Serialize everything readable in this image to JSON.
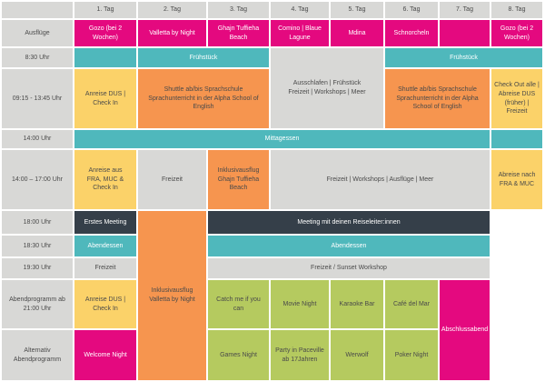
{
  "colors": {
    "pink": "#E4097F",
    "teal": "#4FB8BC",
    "orange": "#F6954F",
    "yellow": "#FBD269",
    "green": "#B5CA5F",
    "gray": "#D8D8D6",
    "dark": "#353F49",
    "text_dark": "#4A4A4A",
    "text_light": "#FFFFFF",
    "background": "#FFFFFF"
  },
  "grid": {
    "day_headers": [
      "1. Tag",
      "2. Tag",
      "3. Tag",
      "4. Tag",
      "5. Tag",
      "6. Tag",
      "7. Tag",
      "8. Tag"
    ],
    "row_labels": [
      "Ausflüge",
      "8:30 Uhr",
      "09:15 - 13:45 Uhr",
      "14:00 Uhr",
      "14:00 – 17:00 Uhr",
      "18:00 Uhr",
      "18:30 Uhr",
      "19:30 Uhr",
      "Abendprogramm ab 21:00 Uhr",
      "Alternativ Abendprogramm"
    ],
    "cells": [
      {
        "row": 1,
        "col": 1,
        "color": "pink",
        "text": "Gozo (bei 2 Wochen)"
      },
      {
        "row": 1,
        "col": 2,
        "color": "pink",
        "text": "Valletta by Night"
      },
      {
        "row": 1,
        "col": 3,
        "color": "pink",
        "text": "Ghajn Tuffieha Beach"
      },
      {
        "row": 1,
        "col": 4,
        "color": "pink",
        "text": "Comino | Blaue Lagune"
      },
      {
        "row": 1,
        "col": 5,
        "color": "pink",
        "text": "Mdina"
      },
      {
        "row": 1,
        "col": 6,
        "color": "pink",
        "text": "Schnorcheln"
      },
      {
        "row": 1,
        "col": 7,
        "color": "pink",
        "text": ""
      },
      {
        "row": 1,
        "col": 8,
        "color": "pink",
        "text": "Gozo (bei 2 Wochen)"
      },
      {
        "row": 2,
        "col": 1,
        "color": "teal",
        "text": ""
      },
      {
        "row": 2,
        "col": 2,
        "cs": 2,
        "color": "teal",
        "text": "Frühstück"
      },
      {
        "row": 2,
        "col": 4,
        "cs": 2,
        "rs": 2,
        "color": "gray",
        "text": "Ausschlafen | Frühstück\nFreizeit | Workshops | Meer"
      },
      {
        "row": 2,
        "col": 6,
        "cs": 3,
        "color": "teal",
        "text": "Frühstück"
      },
      {
        "row": 3,
        "col": 1,
        "color": "yellow",
        "text": "Anreise DUS | Check In"
      },
      {
        "row": 3,
        "col": 2,
        "cs": 2,
        "color": "orange",
        "text": "Shuttle ab/bis Sprachschule\nSprachunterricht in der Alpha School of English"
      },
      {
        "row": 3,
        "col": 6,
        "cs": 2,
        "color": "orange",
        "text": "Shuttle ab/bis Sprachschule Sprachunterricht in der Alpha School of English"
      },
      {
        "row": 3,
        "col": 8,
        "color": "yellow",
        "text": "Check Out alle | Abreise DUS (früher) | Freizeit"
      },
      {
        "row": 4,
        "col": 1,
        "cs": 7,
        "color": "teal",
        "text": "Mittagessen"
      },
      {
        "row": 4,
        "col": 8,
        "color": "teal",
        "text": ""
      },
      {
        "row": 5,
        "col": 1,
        "color": "yellow",
        "text": "Anreise aus\nFRA, MUC & Check In"
      },
      {
        "row": 5,
        "col": 2,
        "color": "gray",
        "text": "Freizeit"
      },
      {
        "row": 5,
        "col": 3,
        "color": "orange",
        "text": "Inklusivausflug\nGhajn Tuffieha Beach"
      },
      {
        "row": 5,
        "col": 4,
        "cs": 4,
        "color": "gray",
        "text": "Freizeit | Workshops | Ausflüge | Meer"
      },
      {
        "row": 5,
        "col": 8,
        "color": "yellow",
        "text": "Abreise nach\nFRA & MUC"
      },
      {
        "row": 6,
        "col": 1,
        "color": "dark",
        "text": "Erstes Meeting"
      },
      {
        "row": 6,
        "col": 2,
        "rs": 5,
        "color": "orange",
        "text": "Inklusivausflug\nValletta by Night"
      },
      {
        "row": 6,
        "col": 3,
        "cs": 5,
        "color": "dark",
        "text": "Meeting mit deinen Reiseleiter:innen"
      },
      {
        "row": 7,
        "col": 1,
        "color": "teal",
        "text": "Abendessen"
      },
      {
        "row": 7,
        "col": 3,
        "cs": 5,
        "color": "teal",
        "text": "Abendessen"
      },
      {
        "row": 8,
        "col": 1,
        "color": "gray",
        "text": "Freizeit"
      },
      {
        "row": 8,
        "col": 3,
        "cs": 5,
        "color": "gray",
        "text": "Freizeit / Sunset Workshop"
      },
      {
        "row": 9,
        "col": 1,
        "color": "yellow",
        "text": "Anreise DUS | Check In"
      },
      {
        "row": 9,
        "col": 3,
        "color": "green",
        "text": "Catch me if you can"
      },
      {
        "row": 9,
        "col": 4,
        "color": "green",
        "text": "Movie Night"
      },
      {
        "row": 9,
        "col": 5,
        "color": "green",
        "text": "Karaoke Bar"
      },
      {
        "row": 9,
        "col": 6,
        "color": "green",
        "text": "Café del Mar"
      },
      {
        "row": 9,
        "col": 7,
        "rs": 2,
        "color": "pink",
        "text": "Abschlussabend"
      },
      {
        "row": 10,
        "col": 1,
        "color": "pink",
        "text": "Welcome Night"
      },
      {
        "row": 10,
        "col": 3,
        "color": "green",
        "text": "Games Night"
      },
      {
        "row": 10,
        "col": 4,
        "color": "green",
        "text": "Party in Paceville\nab 17Jahren"
      },
      {
        "row": 10,
        "col": 5,
        "color": "green",
        "text": "Werwolf"
      },
      {
        "row": 10,
        "col": 6,
        "color": "green",
        "text": "Poker Night"
      }
    ]
  }
}
